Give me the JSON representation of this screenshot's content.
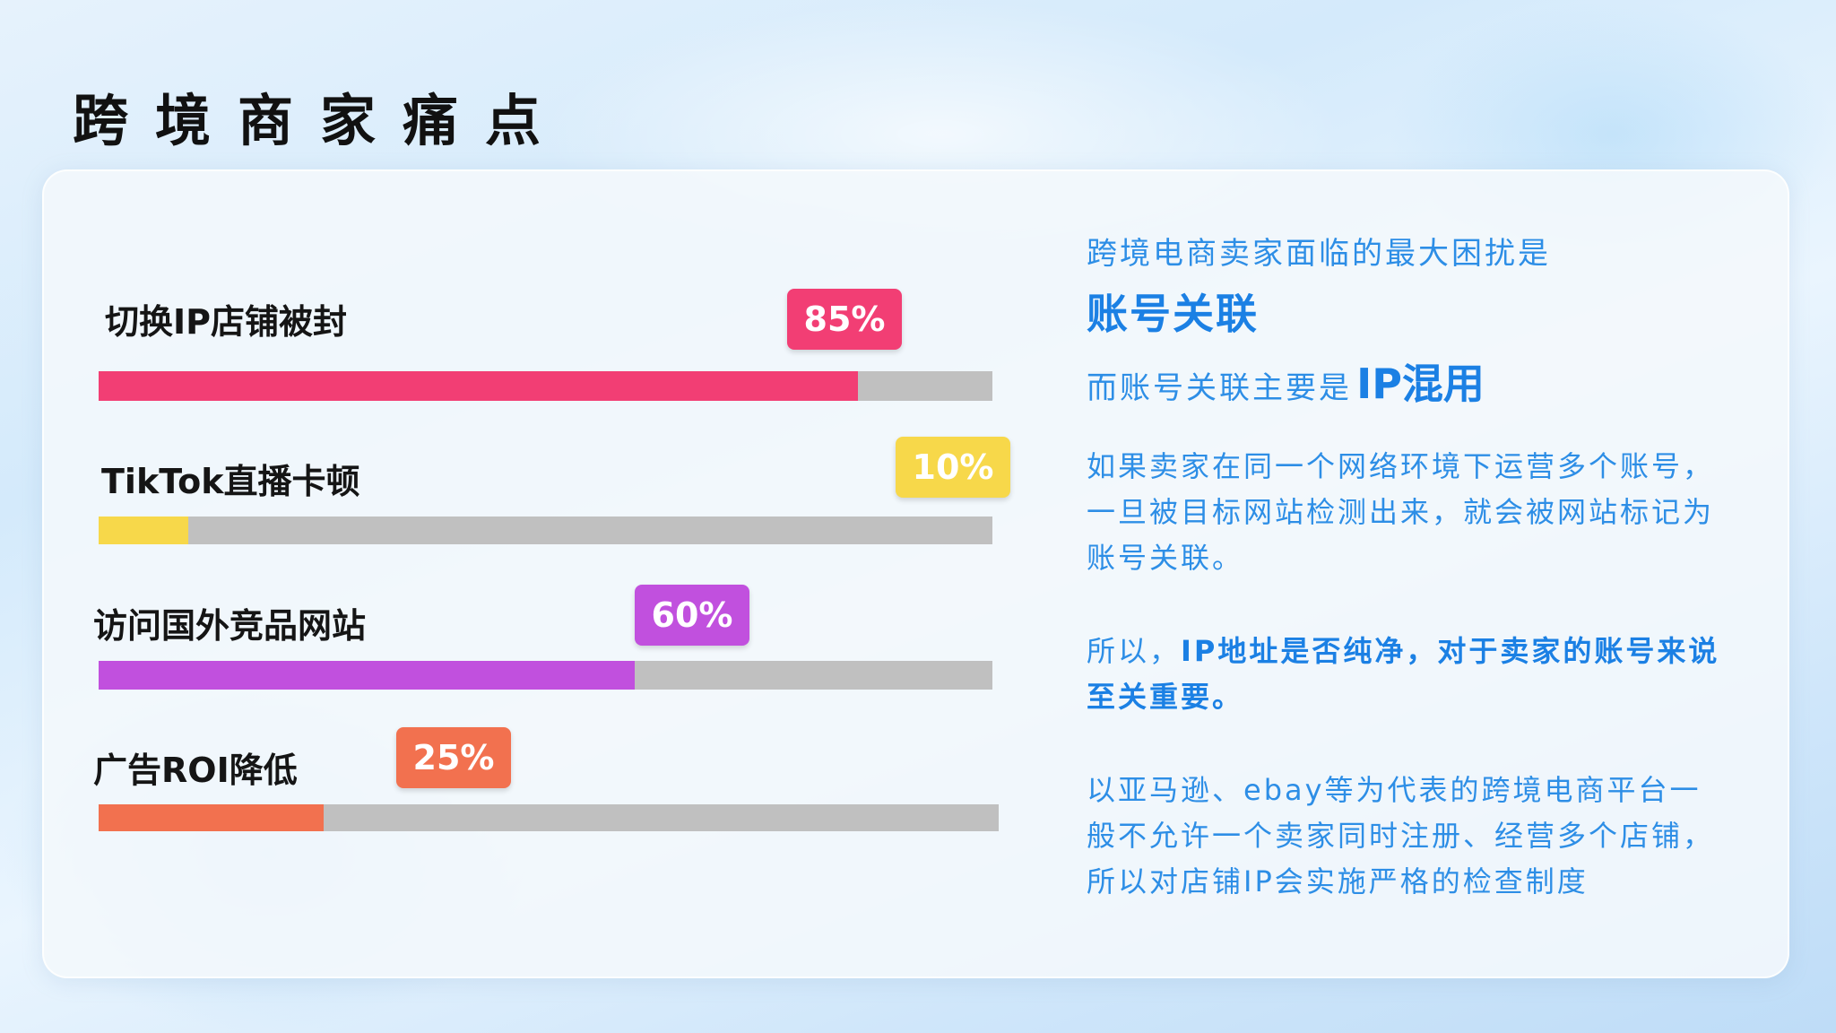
{
  "title": "跨境商家痛点",
  "rows": [
    {
      "label": "切换IP店铺被封",
      "badge": "85%",
      "value": 85,
      "color": "#f23e74"
    },
    {
      "label": "TikTok直播卡顿",
      "badge": "10%",
      "value": 10,
      "color": "#f7d84a"
    },
    {
      "label": "访问国外竞品网站",
      "badge": "60%",
      "value": 60,
      "color": "#c150de"
    },
    {
      "label": "广告ROI降低",
      "badge": "25%",
      "value": 25,
      "color": "#f2714f"
    }
  ],
  "track_color": "#c0c0c0",
  "right": {
    "line1": "跨境电商卖家面临的最大困扰是",
    "highlight1": "账号关联",
    "line3_prefix": "而账号关联主要是",
    "highlight2": "IP混用",
    "para1": [
      "如果卖家在同一个网络环境下运营多个账号，",
      "一旦被目标网站检测出来，就会被网站标记为",
      "账号关联。"
    ],
    "para2_prefix": "所以，",
    "para2_bold_line1": "IP地址是否纯净，对于卖家的账号来说",
    "para2_bold_line2": "至关重要。",
    "para3": [
      "以亚马逊、ebay等为代表的跨境电商平台一",
      "般不允许一个卖家同时注册、经营多个店铺，",
      "所以对店铺IP会实施严格的检查制度"
    ],
    "text_color": "#2d8ee6"
  }
}
